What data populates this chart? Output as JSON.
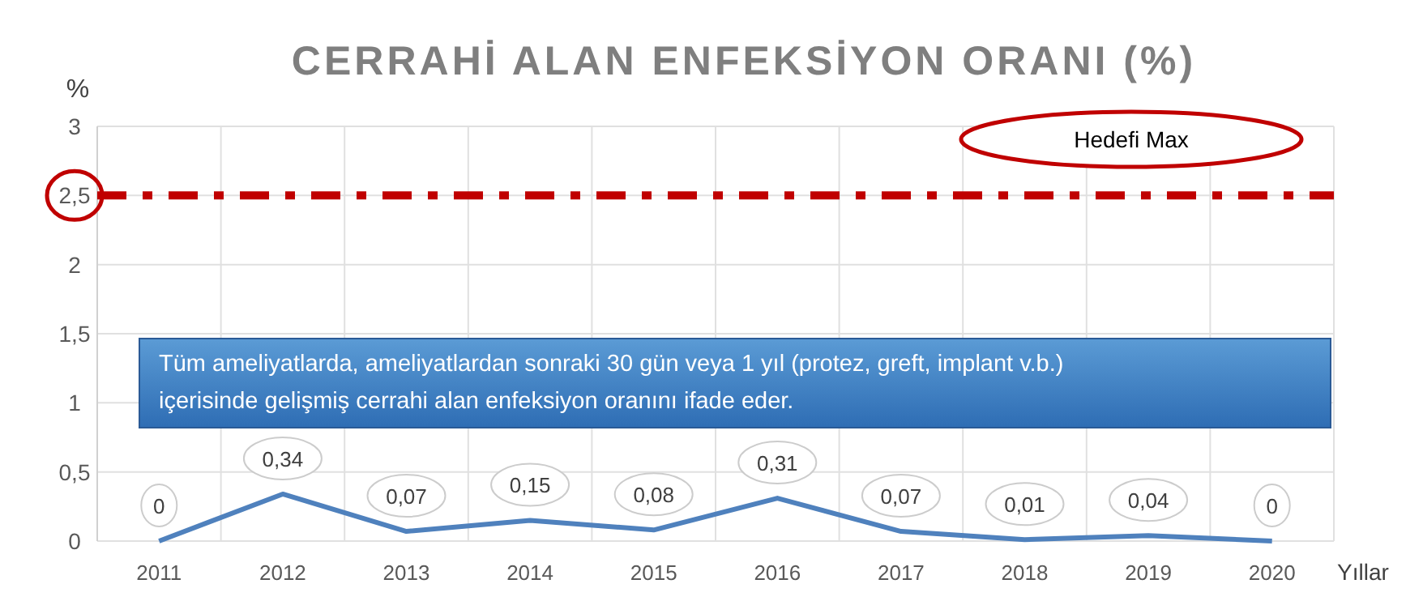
{
  "chart_data": {
    "type": "line",
    "title": "CERRAHİ ALAN ENFEKSİYON ORANI (%)",
    "ylabel": "%",
    "xlabel": "Yıllar",
    "categories": [
      "2011",
      "2012",
      "2013",
      "2014",
      "2015",
      "2016",
      "2017",
      "2018",
      "2019",
      "2020"
    ],
    "series": [
      {
        "color": "#4f81bd",
        "values": [
          0,
          0.34,
          0.07,
          0.15,
          0.08,
          0.31,
          0.07,
          0.01,
          0.04,
          0
        ],
        "value_labels": [
          "0",
          "0,34",
          "0,07",
          "0,15",
          "0,08",
          "0,31",
          "0,07",
          "0,01",
          "0,04",
          "0"
        ]
      }
    ],
    "ylim": [
      0,
      3
    ],
    "yticks": [
      0,
      {
        "value": 0.5,
        "label": "0,5"
      },
      1,
      {
        "value": 1.5,
        "label": "1,5"
      },
      2,
      {
        "value": 2.5,
        "label": "2,5"
      },
      3
    ],
    "ref_lines": [
      {
        "axis": "y",
        "value": 2.5,
        "label": "Hedefi Max",
        "color": "#c00000",
        "line_style": "dashed"
      }
    ],
    "annotations": [
      "Tüm ameliyatlarda, ameliyatlardan sonraki 30 gün veya 1 yıl (protez, greft, implant v.b.)\niçerisinde gelişmiş cerrahi alan enfeksiyon oranını ifade eder."
    ],
    "grid": true,
    "line_style": "solid"
  }
}
